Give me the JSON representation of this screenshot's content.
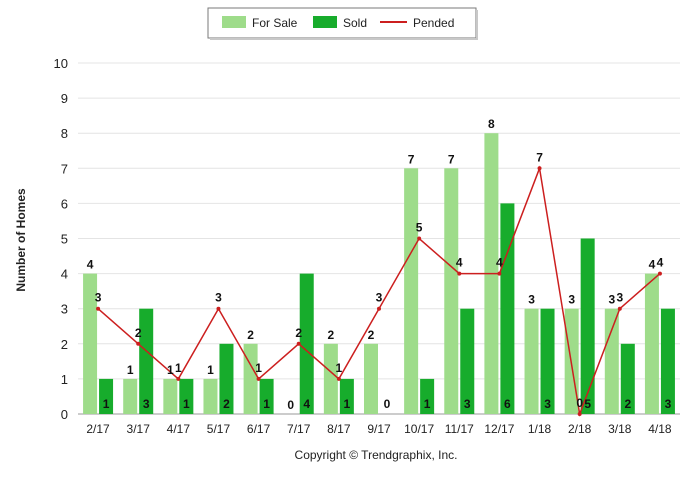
{
  "chart_data": {
    "type": "bar",
    "categories": [
      "2/17",
      "3/17",
      "4/17",
      "5/17",
      "6/17",
      "7/17",
      "8/17",
      "9/17",
      "10/17",
      "11/17",
      "12/17",
      "1/18",
      "2/18",
      "3/18",
      "4/18"
    ],
    "series": [
      {
        "name": "For Sale",
        "type": "bar",
        "color": "#9edc8a",
        "values": [
          4,
          1,
          1,
          1,
          2,
          0,
          2,
          2,
          7,
          7,
          8,
          3,
          3,
          3,
          4
        ]
      },
      {
        "name": "Sold",
        "type": "bar",
        "color": "#17ac2c",
        "values": [
          1,
          3,
          1,
          2,
          1,
          4,
          1,
          0,
          1,
          3,
          6,
          3,
          5,
          2,
          3
        ]
      },
      {
        "name": "Pended",
        "type": "line",
        "color": "#cc1f1f",
        "values": [
          3,
          2,
          1,
          3,
          1,
          2,
          1,
          3,
          5,
          4,
          4,
          7,
          0,
          3,
          4
        ]
      }
    ],
    "ylabel": "Number of Homes",
    "ylim": [
      0,
      10
    ],
    "yticks": [
      0,
      1,
      2,
      3,
      4,
      5,
      6,
      7,
      8,
      9,
      10
    ],
    "grid": true,
    "legend": "top-center"
  },
  "footer": {
    "copyright": "Copyright © Trendgraphix, Inc."
  }
}
